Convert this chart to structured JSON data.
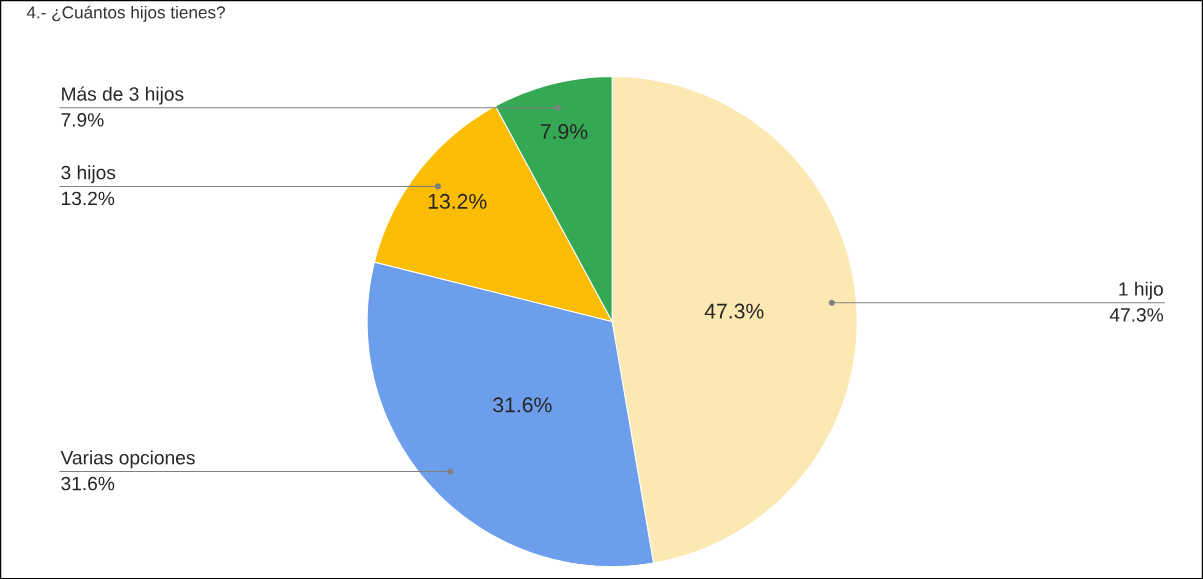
{
  "chart_data": {
    "type": "pie",
    "title": "4.- ¿Cuántos hijos tienes?",
    "categories": [
      "1 hijo",
      "Varias opciones",
      "3 hijos",
      "Más de 3 hijos"
    ],
    "values": [
      47.3,
      31.6,
      13.2,
      7.9
    ],
    "value_labels": [
      "47.3%",
      "31.6%",
      "13.2%",
      "7.9%"
    ],
    "colors": [
      "#fce8b2",
      "#6d9eeb",
      "#fbbc04",
      "#34a853"
    ]
  }
}
